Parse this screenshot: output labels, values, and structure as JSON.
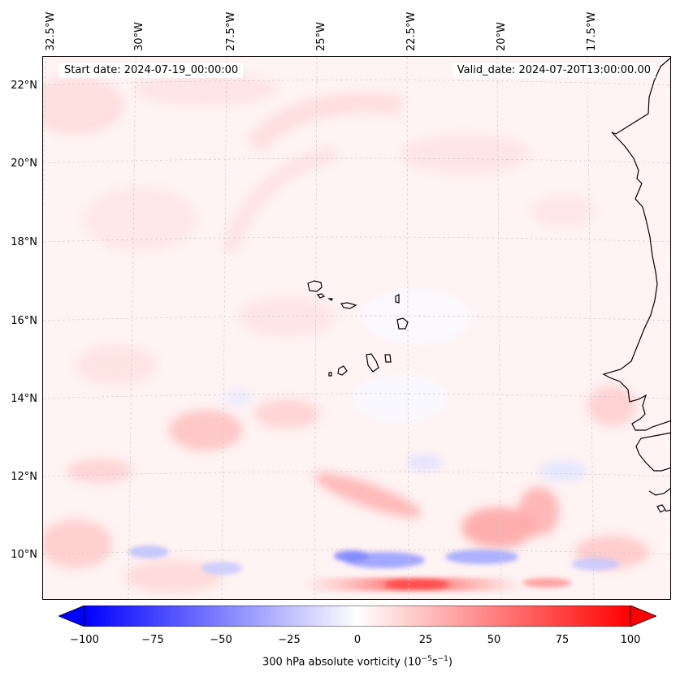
{
  "info": {
    "start": "Start date: 2024-07-19_00:00:00",
    "valid": "Valid_date: 2024-07-20T13:00:00.00"
  },
  "axes": {
    "lat_labels": [
      "22°N",
      "20°N",
      "18°N",
      "16°N",
      "14°N",
      "12°N",
      "10°N"
    ],
    "lon_labels": [
      "32.5°W",
      "30°W",
      "27.5°W",
      "25°W",
      "22.5°W",
      "20°W",
      "17.5°W"
    ]
  },
  "colorbar": {
    "ticks": [
      "−100",
      "−75",
      "−50",
      "−25",
      "0",
      "25",
      "50",
      "75",
      "100"
    ],
    "label_prefix": "300 hPa absolute vorticity (10",
    "label_exp1": "−5",
    "label_mid": "s",
    "label_exp2": "−1",
    "label_suffix": ")",
    "min_color": "#0000ff",
    "mid_color": "#ffffff",
    "max_color": "#ff0000"
  },
  "map": {
    "background_color": "#fff3f3",
    "coastline_color": "#000000",
    "gridline_color": "#cccccc"
  }
}
